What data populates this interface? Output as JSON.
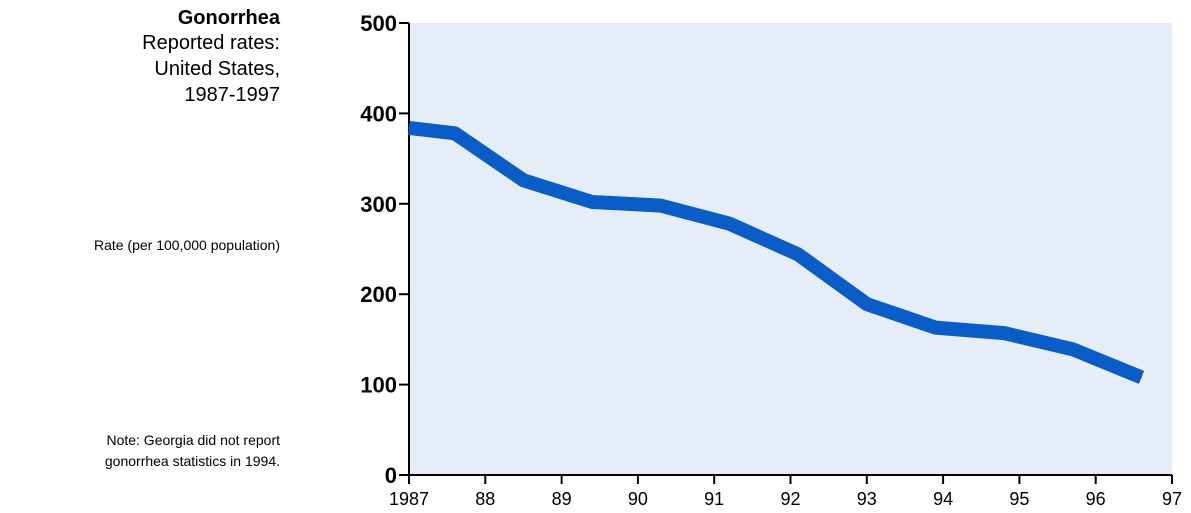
{
  "header": {
    "title": "Gonorrhea",
    "subtitle_lines": [
      "Reported rates:",
      "United States,",
      "1987-1997"
    ]
  },
  "side_labels": {
    "y_axis_label": "Rate (per 100,000 population)",
    "note_lines": [
      "Note:  Georgia did not report",
      "gonorrhea statistics in 1994."
    ]
  },
  "colors": {
    "line": "#0a5cc7",
    "plot_background": "#e4edf8",
    "axis": "#000000"
  },
  "chart_data": {
    "type": "line",
    "title": "Gonorrhea",
    "subtitle": "Reported rates: United States, 1987-1997",
    "ylabel": "Rate (per 100,000 population)",
    "xlabel": "",
    "ylim": [
      0,
      500
    ],
    "yticks": [
      0,
      100,
      200,
      300,
      400,
      500
    ],
    "xlim": [
      1987,
      1997
    ],
    "xtick_values": [
      1987,
      1988,
      1989,
      1990,
      1991,
      1992,
      1993,
      1994,
      1995,
      1996,
      1997
    ],
    "xtick_labels": [
      "1987",
      "88",
      "89",
      "90",
      "91",
      "92",
      "93",
      "94",
      "95",
      "96",
      "97"
    ],
    "grid": false,
    "series": [
      {
        "x": [
          1987,
          1987.6,
          1988.5,
          1989.4,
          1990.3,
          1991.2,
          1992.1,
          1993,
          1993.9,
          1994.8,
          1995.7,
          1996.6
        ],
        "values": [
          384,
          378,
          326,
          302,
          298,
          278,
          244,
          189,
          163,
          157,
          139,
          108
        ]
      }
    ]
  }
}
